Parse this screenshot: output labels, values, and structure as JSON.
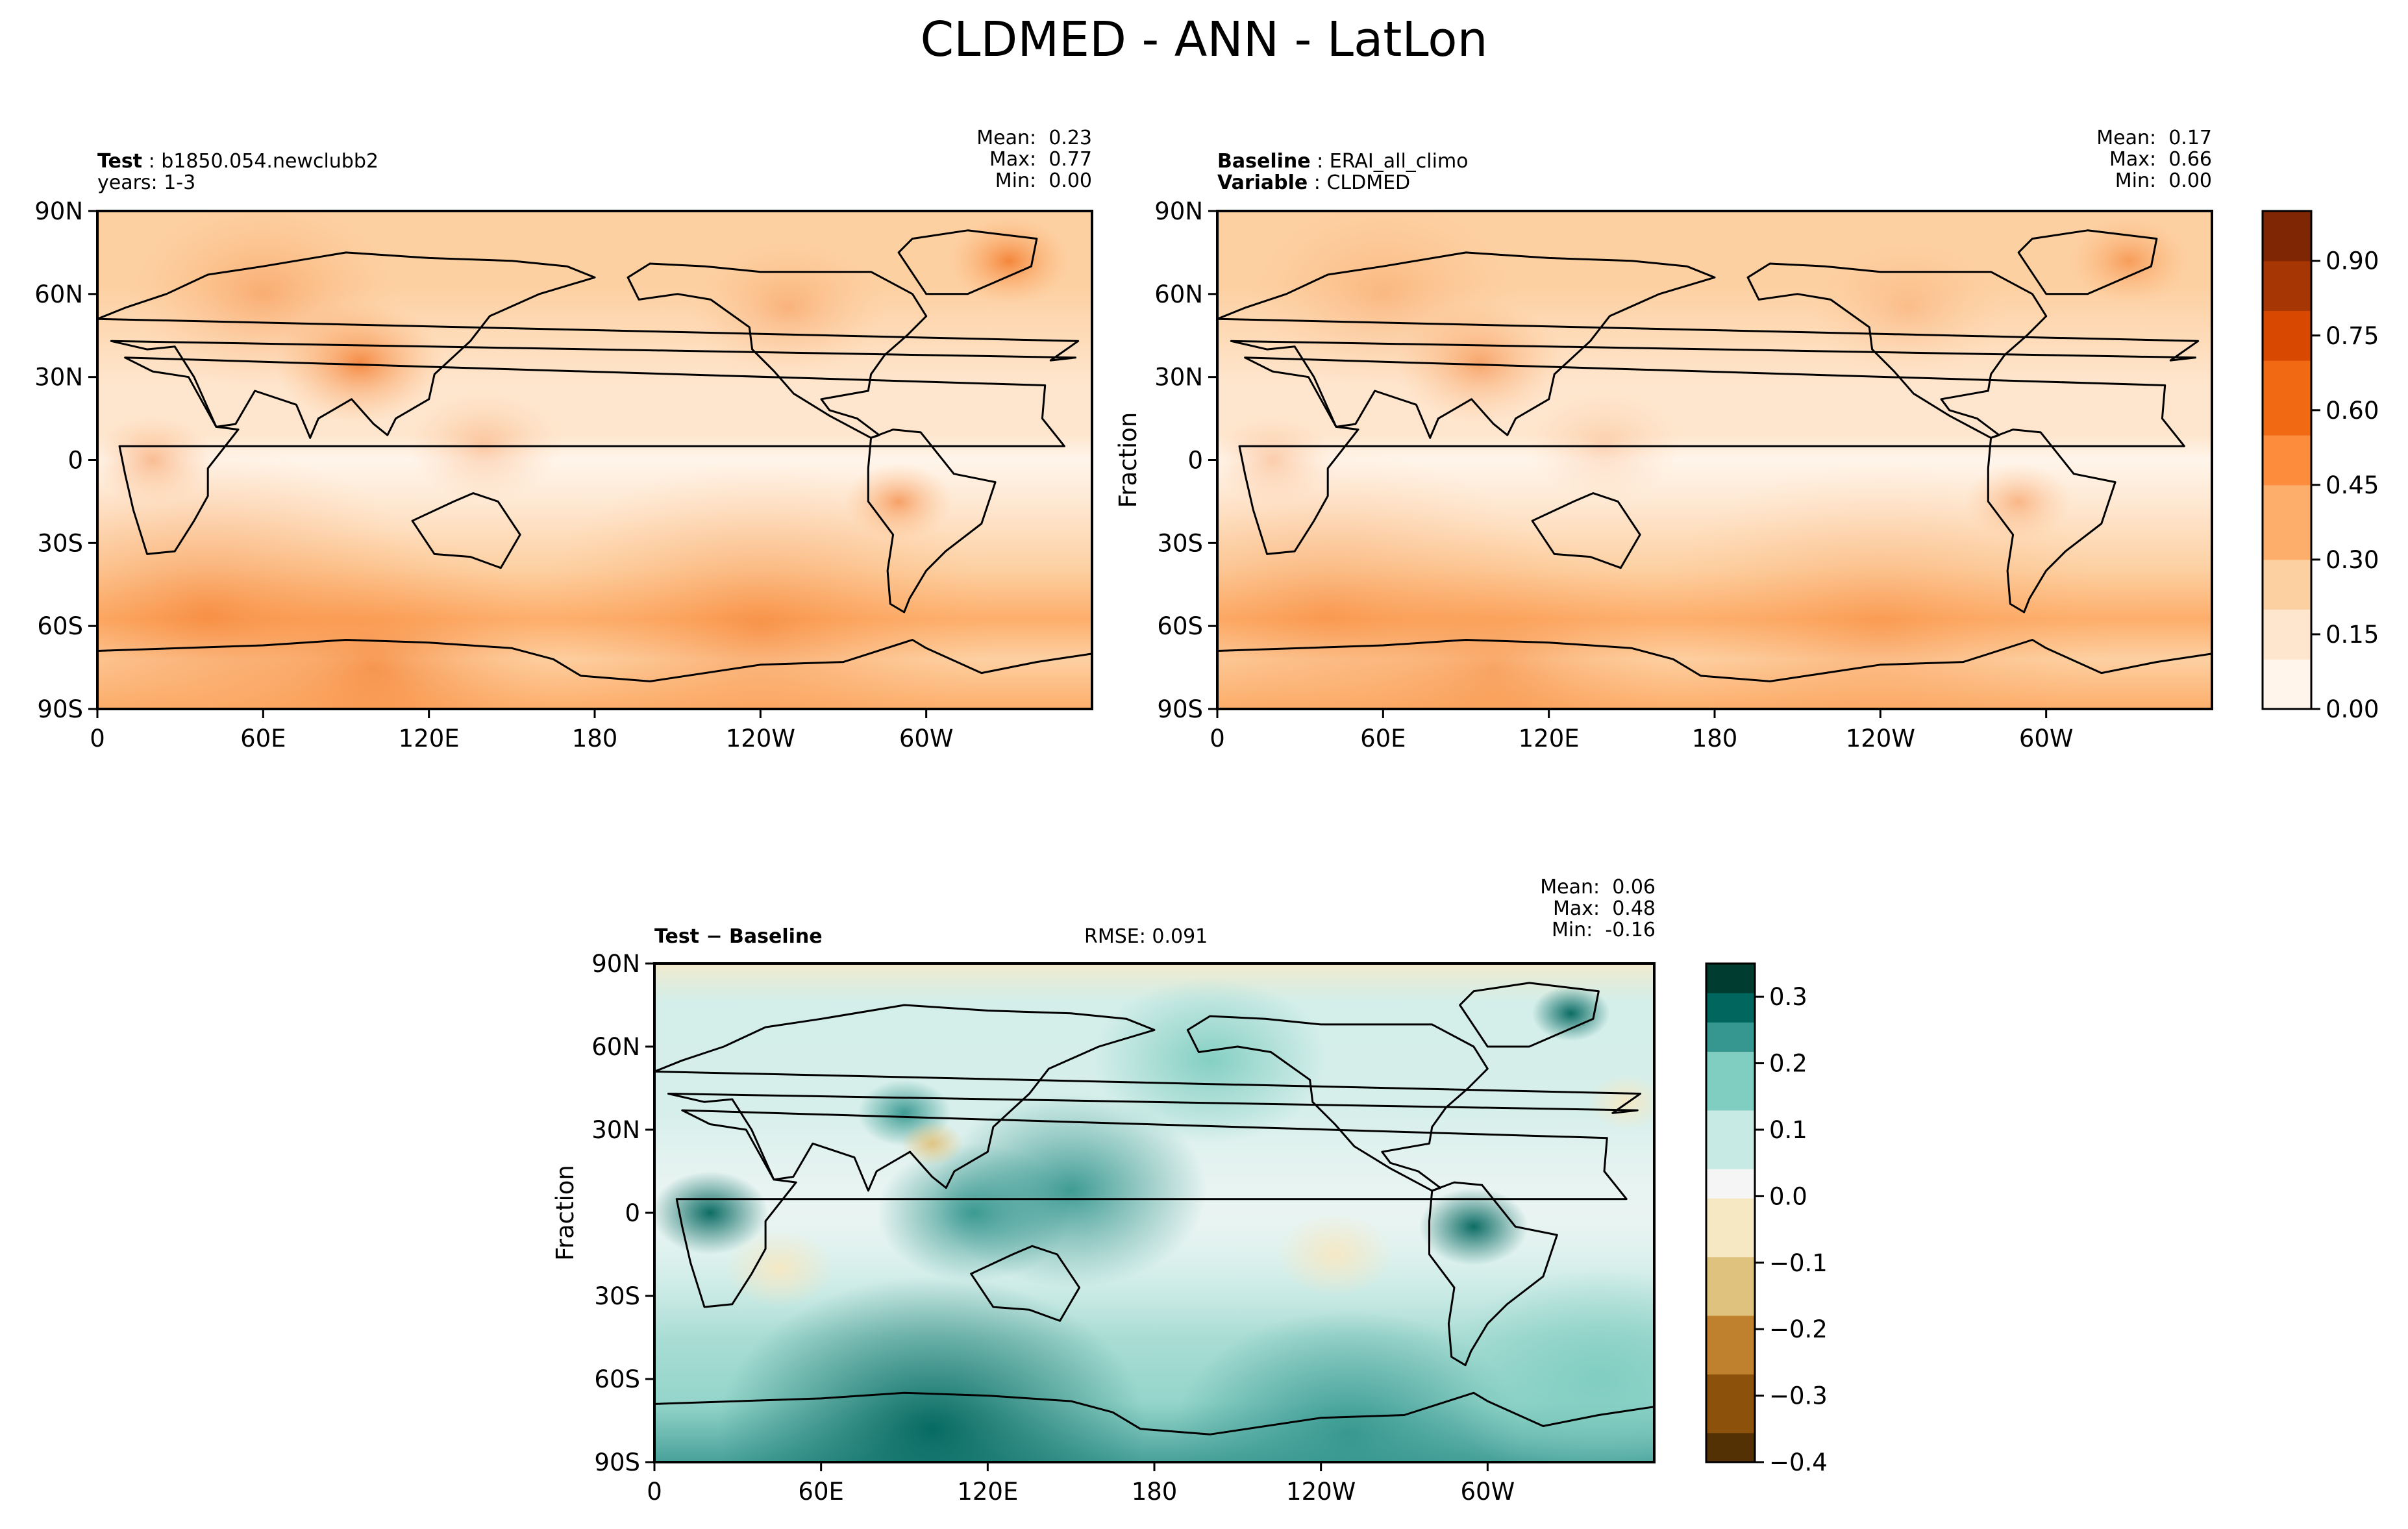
{
  "figure_title": "CLDMED - ANN - LatLon",
  "chart_data": [
    {
      "type": "heatmap",
      "panel": "test",
      "header": {
        "line1_label": "Test",
        "line1_value": "b1850.054.newclubb2",
        "line2_text": "years: 1-3"
      },
      "stats": {
        "mean_label": "Mean:",
        "mean": "0.23",
        "max_label": "Max:",
        "max": "0.77",
        "min_label": "Min:",
        "min": "0.00"
      },
      "ylabel": "",
      "x_ticks": [
        "0",
        "60E",
        "120E",
        "180",
        "120W",
        "60W"
      ],
      "y_ticks": [
        "90N",
        "60N",
        "30N",
        "0",
        "30S",
        "60S",
        "90S"
      ],
      "xlim": [
        0,
        360
      ],
      "ylim": [
        -90,
        90
      ],
      "colormap": "Oranges",
      "value_range": [
        0,
        1.0
      ]
    },
    {
      "type": "heatmap",
      "panel": "baseline",
      "header": {
        "line1_label": "Baseline",
        "line1_value": "ERAI_all_climo",
        "line2_label": "Variable",
        "line2_value": "CLDMED"
      },
      "stats": {
        "mean_label": "Mean:",
        "mean": "0.17",
        "max_label": "Max:",
        "max": "0.66",
        "min_label": "Min:",
        "min": "0.00"
      },
      "ylabel": "Fraction",
      "x_ticks": [
        "0",
        "60E",
        "120E",
        "180",
        "120W",
        "60W"
      ],
      "y_ticks": [
        "90N",
        "60N",
        "30N",
        "0",
        "30S",
        "60S",
        "90S"
      ],
      "xlim": [
        0,
        360
      ],
      "ylim": [
        -90,
        90
      ],
      "colormap": "Oranges",
      "value_range": [
        0,
        1.0
      ],
      "colorbar_ticks": [
        "0.00",
        "0.15",
        "0.30",
        "0.45",
        "0.60",
        "0.75",
        "0.90"
      ]
    },
    {
      "type": "heatmap",
      "panel": "difference",
      "header": {
        "label": "Test − Baseline",
        "rmse": "RMSE: 0.091"
      },
      "stats": {
        "mean_label": "Mean:",
        "mean": "0.06",
        "max_label": "Max:",
        "max": "0.48",
        "min_label": "Min:",
        "min": "-0.16"
      },
      "ylabel": "Fraction",
      "x_ticks": [
        "0",
        "60E",
        "120E",
        "180",
        "120W",
        "60W"
      ],
      "y_ticks": [
        "90N",
        "60N",
        "30N",
        "0",
        "30S",
        "60S",
        "90S"
      ],
      "xlim": [
        0,
        360
      ],
      "ylim": [
        -90,
        90
      ],
      "colormap": "BrBG",
      "value_range": [
        -0.4,
        0.35
      ],
      "colorbar_ticks": [
        "−0.4",
        "−0.3",
        "−0.2",
        "−0.1",
        "0.0",
        "0.1",
        "0.2",
        "0.3"
      ]
    }
  ],
  "colors": {
    "oranges": [
      "#fff5eb",
      "#fee6ce",
      "#fdd0a2",
      "#fdae6b",
      "#fd8d3c",
      "#f16913",
      "#d94801",
      "#a63603",
      "#7f2704"
    ],
    "brbg": [
      "#543005",
      "#8c510a",
      "#bf812d",
      "#dfc27d",
      "#f6e8c3",
      "#f5f5f5",
      "#c7eae5",
      "#80cdc1",
      "#35978f",
      "#01665e",
      "#003c30"
    ]
  }
}
